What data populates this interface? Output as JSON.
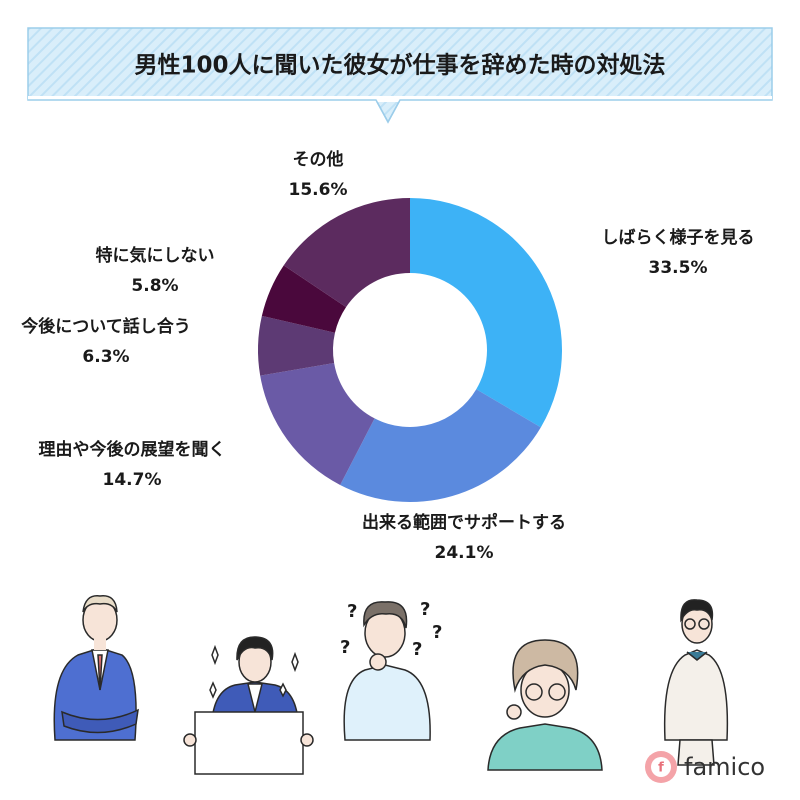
{
  "chart_data": {
    "type": "donut",
    "title": "男性100人に聞いた彼女が仕事を辞めた時の対処法",
    "categories": [
      "しばらく様子を見る",
      "出来る範囲でサポートする",
      "理由や今後の展望を聞く",
      "今後について話し合う",
      "特に気にしない",
      "その他"
    ],
    "values": [
      33.5,
      24.1,
      14.7,
      6.3,
      5.8,
      15.6
    ],
    "value_labels": [
      "33.5%",
      "24.1%",
      "14.7%",
      "6.3%",
      "5.8%",
      "15.6%"
    ],
    "colors": [
      "#3db2f6",
      "#5b8ade",
      "#6a5aa6",
      "#5d3a74",
      "#4a083c",
      "#5c2b5f"
    ]
  },
  "logo": {
    "mark": "f",
    "text": "famico"
  }
}
